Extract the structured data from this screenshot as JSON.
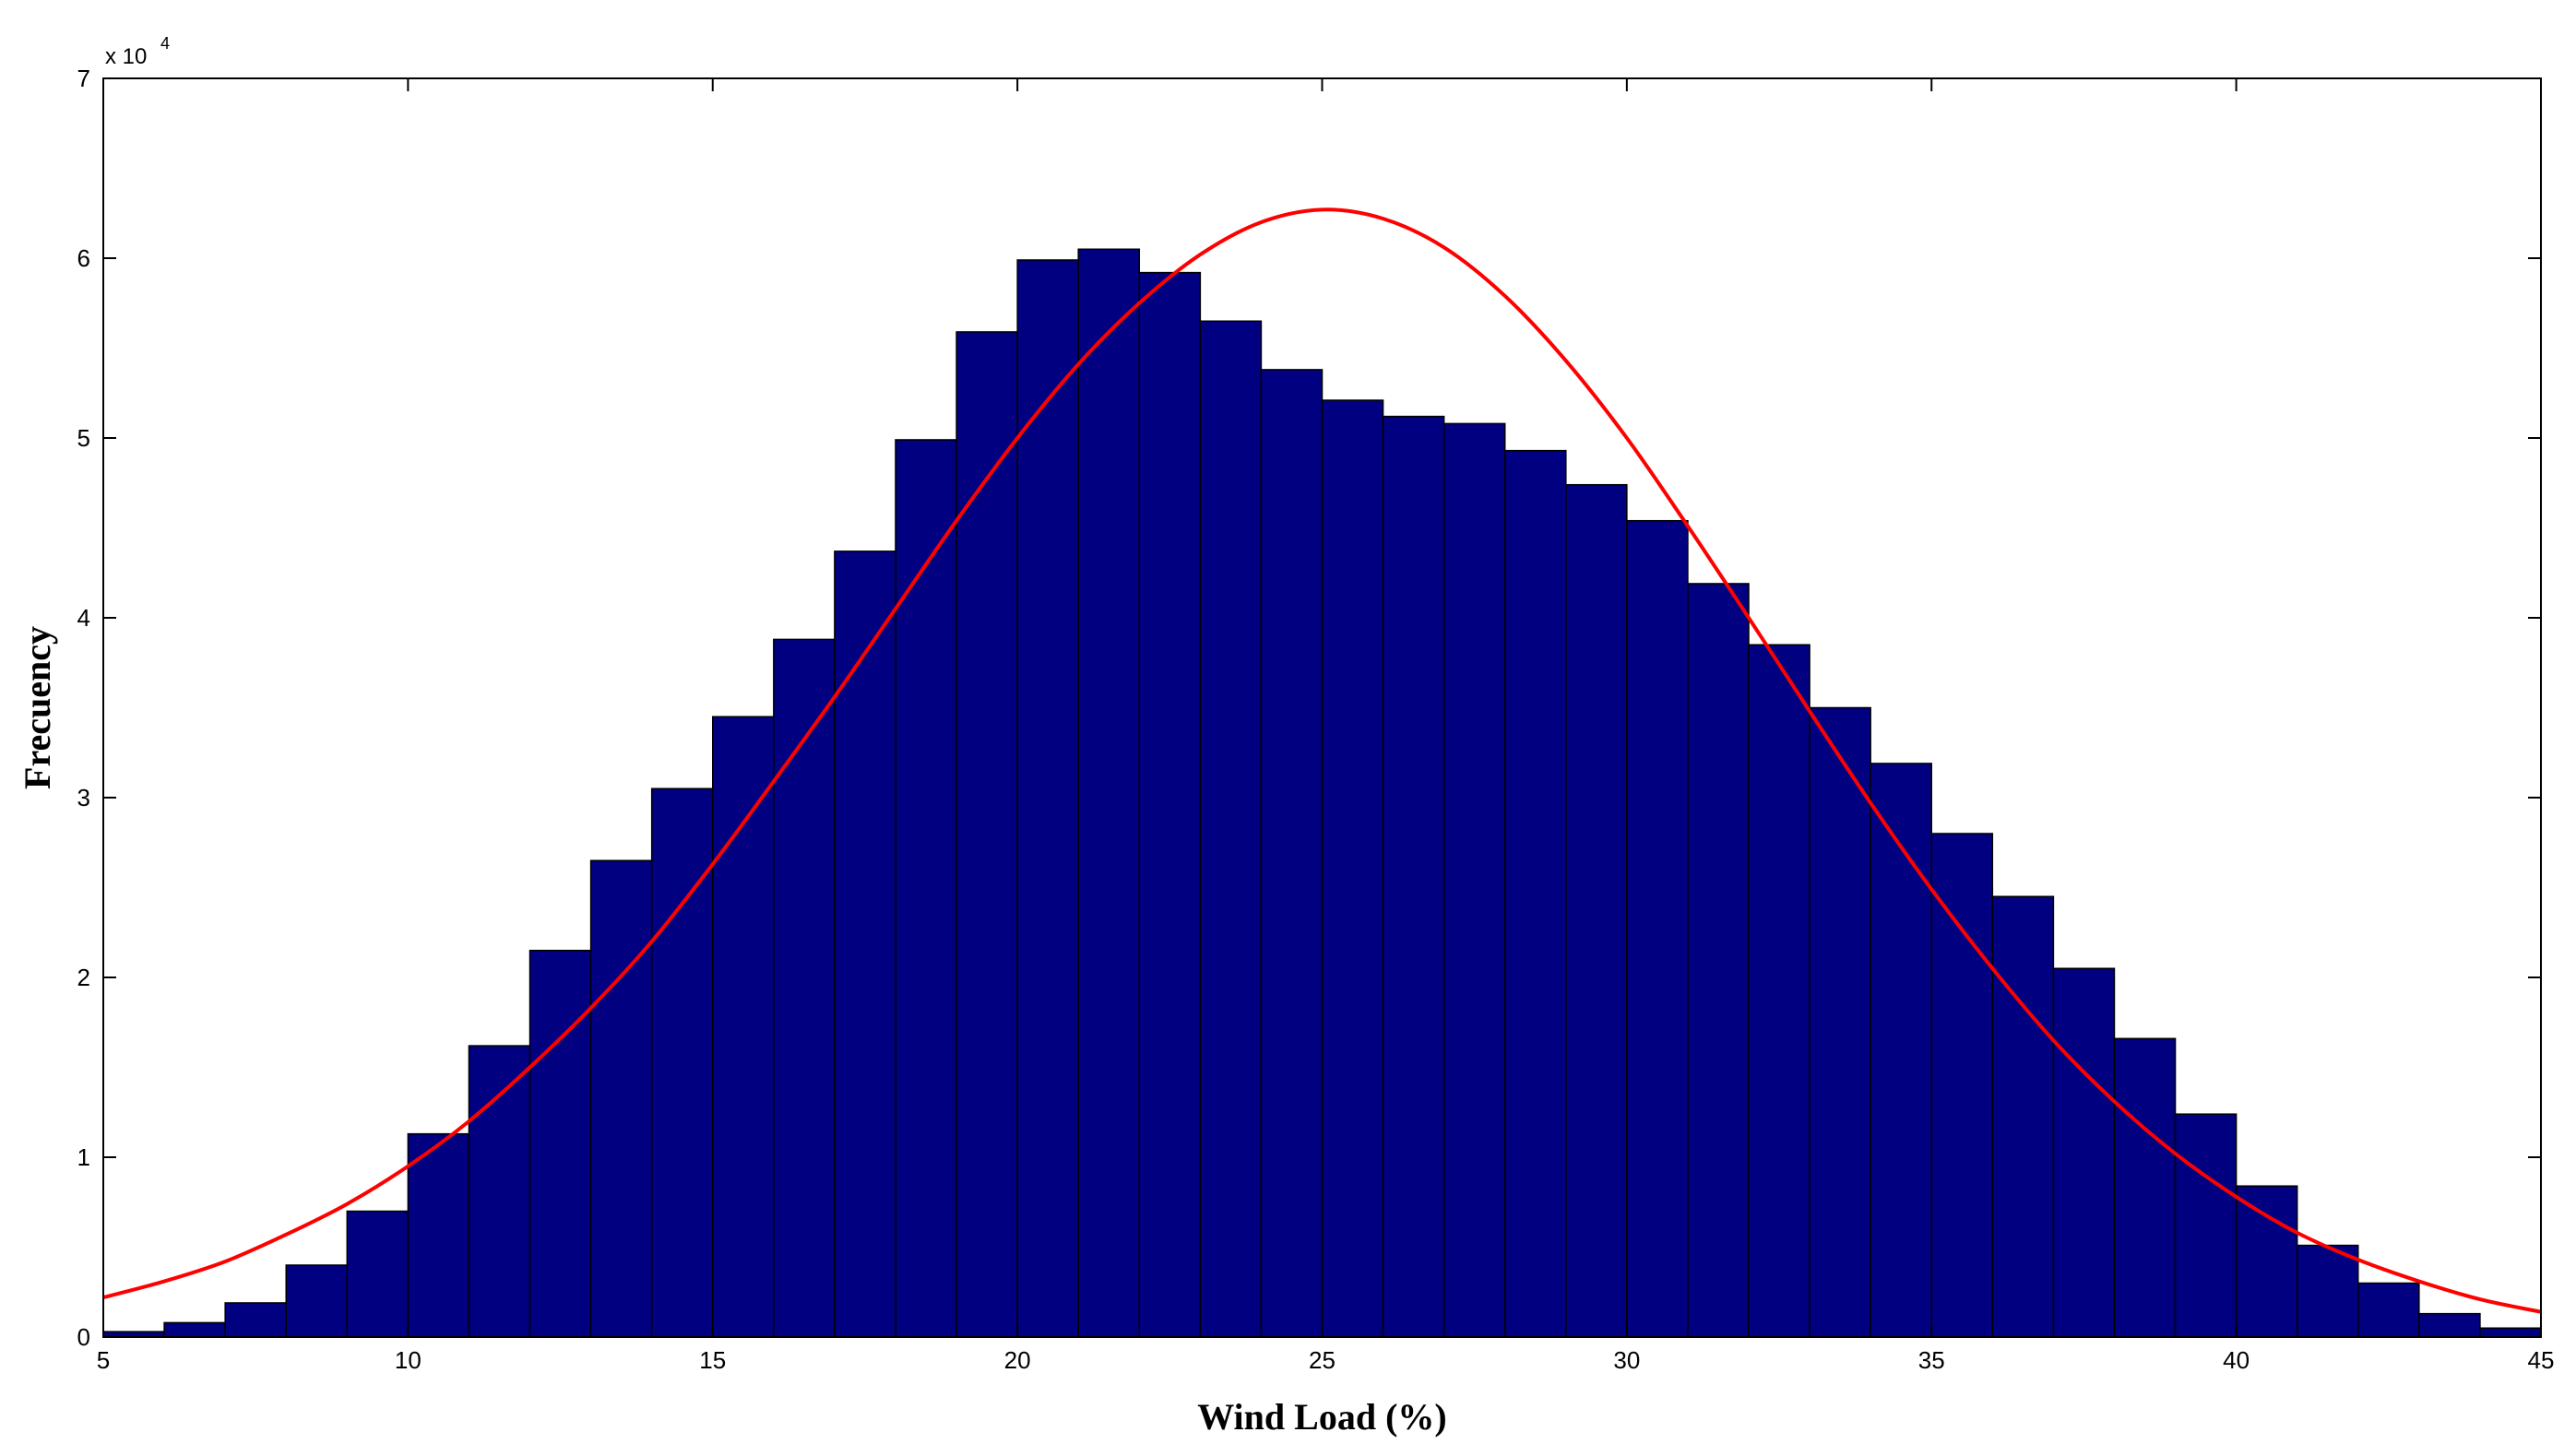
{
  "chart_data": {
    "type": "bar",
    "subtype": "histogram-with-fitted-curve",
    "xlabel": "Wind Load (%)",
    "ylabel": "Frecuency",
    "xlim": [
      5,
      45
    ],
    "ylim": [
      0,
      70000
    ],
    "y_exponent_label": "x 10",
    "y_exponent_power": "4",
    "x_ticks": [
      5,
      10,
      15,
      20,
      25,
      30,
      35,
      40,
      45
    ],
    "y_ticks": [
      0,
      10000,
      20000,
      30000,
      40000,
      50000,
      60000,
      70000
    ],
    "x_tick_labels": [
      "5",
      "10",
      "15",
      "20",
      "25",
      "30",
      "35",
      "40",
      "45"
    ],
    "y_tick_labels": [
      "0",
      "1",
      "2",
      "3",
      "4",
      "5",
      "6",
      "7"
    ],
    "grid": false,
    "bin_width": 1,
    "bins": {
      "name": "Histogram",
      "centers": [
        5.5,
        6.5,
        7.5,
        8.5,
        9.5,
        10.5,
        11.5,
        12.5,
        13.5,
        14.5,
        15.5,
        16.5,
        17.5,
        18.5,
        19.5,
        20.5,
        21.5,
        22.5,
        23.5,
        24.5,
        25.5,
        26.5,
        27.5,
        28.5,
        29.5,
        30.5,
        31.5,
        32.5,
        33.5,
        34.5,
        35.5,
        36.5,
        37.5,
        38.5,
        39.5,
        40.5,
        41.5,
        42.5,
        43.5,
        44.5
      ],
      "values": [
        300,
        800,
        1900,
        4000,
        7000,
        11300,
        16200,
        21500,
        26500,
        30500,
        34500,
        38800,
        43700,
        49900,
        55900,
        59900,
        60500,
        59200,
        56500,
        53800,
        52100,
        51200,
        50800,
        49300,
        47400,
        45400,
        41900,
        38500,
        35000,
        31900,
        28000,
        24500,
        20500,
        16600,
        12400,
        8400,
        5100,
        3000,
        1300,
        500
      ],
      "color": "#000080"
    },
    "fit_curve": {
      "name": "Normal fit",
      "x": [
        5,
        6,
        7,
        8,
        9,
        10,
        11,
        12,
        13,
        14,
        15,
        16,
        17,
        18,
        19,
        20,
        21,
        22,
        23,
        24,
        25,
        26,
        27,
        28,
        29,
        30,
        31,
        32,
        33,
        34,
        35,
        36,
        37,
        38,
        39,
        40,
        41,
        42,
        43,
        44,
        45
      ],
      "y": [
        2200,
        3100,
        4200,
        5700,
        7400,
        9500,
        12000,
        15000,
        18300,
        22000,
        26300,
        30900,
        35600,
        40500,
        45400,
        50000,
        54100,
        57500,
        60200,
        62000,
        62700,
        62200,
        60600,
        57900,
        54300,
        50000,
        45100,
        40000,
        34800,
        29700,
        24900,
        20500,
        16500,
        13100,
        10200,
        7800,
        5800,
        4300,
        3100,
        2100,
        1400
      ],
      "color": "#ff0000"
    }
  }
}
